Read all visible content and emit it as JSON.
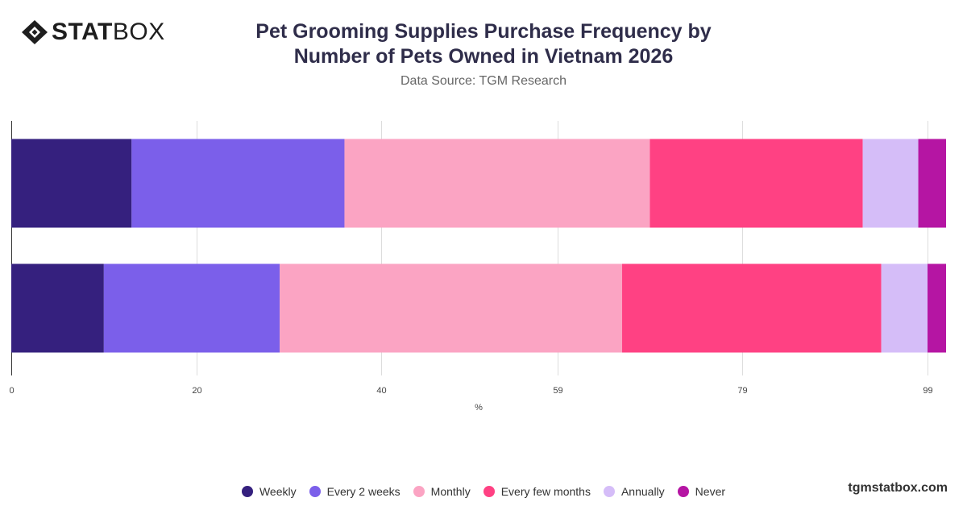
{
  "brand": {
    "logo_bold": "STAT",
    "logo_light": "BOX",
    "footer": "tgmstatbox.com"
  },
  "header": {
    "title_line1": "Pet Grooming Supplies Purchase Frequency by",
    "title_line2": "Number of Pets Owned in Vietnam 2026",
    "subtitle": "Data Source: TGM Research"
  },
  "colors": {
    "Weekly": "#35207e",
    "Every 2 weeks": "#7b5fea",
    "Monthly": "#fba4c3",
    "Every few months": "#ff4183",
    "Annually": "#d5bdf8",
    "Never": "#b515a3"
  },
  "chart_data": {
    "type": "bar",
    "orientation": "horizontal",
    "stacked": true,
    "categories": [
      "",
      ""
    ],
    "series": [
      {
        "name": "Weekly",
        "values": [
          13,
          10
        ]
      },
      {
        "name": "Every 2 weeks",
        "values": [
          23,
          19
        ]
      },
      {
        "name": "Monthly",
        "values": [
          33,
          37
        ]
      },
      {
        "name": "Every few months",
        "values": [
          23,
          28
        ]
      },
      {
        "name": "Annually",
        "values": [
          6,
          5
        ]
      },
      {
        "name": "Never",
        "values": [
          3,
          2
        ]
      }
    ],
    "xlabel": "%",
    "xticks": [
      "0",
      "20",
      "40",
      "59",
      "79",
      "99"
    ],
    "xlim": [
      0,
      101
    ],
    "grid": true,
    "legend": "bottom"
  }
}
